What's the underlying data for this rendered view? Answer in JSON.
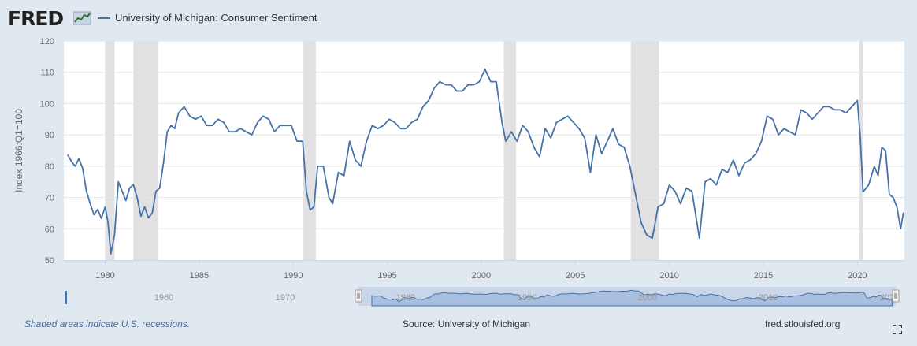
{
  "header": {
    "logo_text": "FRED",
    "legend_label": "University of Michigan: Consumer Sentiment"
  },
  "footer": {
    "recessions_note": "Shaded areas indicate U.S. recessions.",
    "source": "Source: University of Michigan",
    "site": "fred.stlouisfed.org"
  },
  "colors": {
    "series": "#4572a7",
    "recession": "#e1e1e1",
    "background": "#e1e9f0",
    "plot_bg": "#ffffff",
    "navigator_fill": "#a8bfe0"
  },
  "navigator": {
    "tick_labels": [
      "1960",
      "1970",
      "1980",
      "1990",
      "2000",
      "2010",
      "2020"
    ]
  },
  "chart_data": {
    "type": "line",
    "ylabel": "Index 1966:Q1=100",
    "xlabel": "",
    "ylim": [
      50,
      120
    ],
    "yticks": [
      50,
      60,
      70,
      80,
      90,
      100,
      110,
      120
    ],
    "xlim": [
      1977.8,
      2022.5
    ],
    "xticks": [
      1980,
      1985,
      1990,
      1995,
      2000,
      2005,
      2010,
      2015,
      2020
    ],
    "grid": true,
    "legend": "top-left",
    "recessions": [
      [
        1980.0,
        1980.5
      ],
      [
        1981.5,
        1982.8
      ],
      [
        1990.5,
        1991.2
      ],
      [
        2001.2,
        2001.85
      ],
      [
        2007.95,
        2009.45
      ],
      [
        2020.1,
        2020.3
      ]
    ],
    "series": [
      {
        "name": "University of Michigan: Consumer Sentiment",
        "x": [
          1978.0,
          1978.2,
          1978.4,
          1978.6,
          1978.8,
          1979.0,
          1979.2,
          1979.4,
          1979.6,
          1979.8,
          1980.0,
          1980.15,
          1980.3,
          1980.5,
          1980.7,
          1980.9,
          1981.1,
          1981.3,
          1981.5,
          1981.7,
          1981.9,
          1982.1,
          1982.3,
          1982.5,
          1982.7,
          1982.9,
          1983.1,
          1983.3,
          1983.5,
          1983.7,
          1983.9,
          1984.2,
          1984.5,
          1984.8,
          1985.1,
          1985.4,
          1985.7,
          1986.0,
          1986.3,
          1986.6,
          1986.9,
          1987.2,
          1987.5,
          1987.8,
          1988.1,
          1988.4,
          1988.7,
          1989.0,
          1989.3,
          1989.6,
          1989.9,
          1990.2,
          1990.5,
          1990.7,
          1990.9,
          1991.1,
          1991.3,
          1991.6,
          1991.9,
          1992.1,
          1992.4,
          1992.7,
          1993.0,
          1993.3,
          1993.6,
          1993.9,
          1994.2,
          1994.5,
          1994.8,
          1995.1,
          1995.4,
          1995.7,
          1996.0,
          1996.3,
          1996.6,
          1996.9,
          1997.2,
          1997.5,
          1997.8,
          1998.1,
          1998.4,
          1998.7,
          1999.0,
          1999.3,
          1999.6,
          1999.9,
          2000.2,
          2000.5,
          2000.8,
          2001.1,
          2001.3,
          2001.6,
          2001.9,
          2002.2,
          2002.5,
          2002.8,
          2003.1,
          2003.4,
          2003.7,
          2004.0,
          2004.3,
          2004.6,
          2004.9,
          2005.2,
          2005.5,
          2005.8,
          2006.1,
          2006.4,
          2006.7,
          2007.0,
          2007.3,
          2007.6,
          2007.9,
          2008.2,
          2008.5,
          2008.8,
          2009.1,
          2009.4,
          2009.7,
          2010.0,
          2010.3,
          2010.6,
          2010.9,
          2011.2,
          2011.6,
          2011.9,
          2012.2,
          2012.5,
          2012.8,
          2013.1,
          2013.4,
          2013.7,
          2014.0,
          2014.3,
          2014.6,
          2014.9,
          2015.2,
          2015.5,
          2015.8,
          2016.1,
          2016.4,
          2016.7,
          2017.0,
          2017.3,
          2017.6,
          2017.9,
          2018.2,
          2018.5,
          2018.8,
          2019.1,
          2019.4,
          2019.7,
          2020.0,
          2020.15,
          2020.3,
          2020.6,
          2020.9,
          2021.1,
          2021.3,
          2021.5,
          2021.7,
          2021.9,
          2022.1,
          2022.3,
          2022.45
        ],
        "values": [
          83.7,
          81.6,
          80.0,
          82.4,
          79.3,
          72.1,
          68.1,
          64.5,
          66.2,
          63.3,
          67.0,
          62.0,
          52.0,
          58.0,
          75.0,
          72.0,
          69.0,
          73.0,
          74.1,
          70.0,
          64.0,
          67.0,
          63.5,
          65.0,
          72.0,
          73.0,
          81.0,
          91.0,
          93.0,
          92.0,
          97.0,
          99.0,
          96.0,
          95.0,
          96.0,
          93.0,
          93.0,
          95.0,
          94.0,
          91.0,
          91.0,
          92.0,
          91.0,
          90.0,
          94.0,
          96.0,
          95.0,
          91.0,
          93.0,
          93.0,
          93.0,
          88.0,
          88.0,
          72.0,
          66.0,
          67.0,
          80.0,
          80.0,
          70.0,
          68.0,
          78.0,
          77.0,
          88.0,
          82.0,
          80.0,
          88.0,
          93.0,
          92.0,
          93.0,
          95.0,
          94.0,
          92.0,
          92.0,
          94.0,
          95.0,
          99.0,
          101.0,
          105.0,
          107.0,
          106.0,
          106.0,
          104.0,
          104.0,
          106.0,
          106.0,
          107.0,
          111.0,
          107.0,
          107.0,
          94.0,
          88.0,
          91.0,
          88.0,
          93.0,
          91.0,
          86.0,
          83.0,
          92.0,
          89.0,
          94.0,
          95.0,
          96.0,
          94.0,
          92.0,
          89.0,
          78.0,
          90.0,
          84.0,
          88.0,
          92.0,
          87.0,
          86.0,
          80.0,
          71.0,
          62.0,
          58.0,
          57.0,
          67.0,
          68.0,
          74.0,
          72.0,
          68.0,
          73.0,
          72.0,
          57.0,
          75.0,
          76.0,
          74.0,
          79.0,
          78.0,
          82.0,
          77.0,
          81.0,
          82.0,
          84.0,
          88.0,
          96.0,
          95.0,
          90.0,
          92.0,
          91.0,
          90.0,
          98.0,
          97.0,
          95.0,
          97.0,
          99.0,
          99.0,
          98.0,
          98.0,
          97.0,
          99.0,
          101.0,
          89.5,
          71.8,
          74.0,
          80.0,
          77.0,
          86.0,
          85.0,
          71.0,
          70.0,
          67.0,
          60.0,
          65.2
        ]
      }
    ]
  }
}
